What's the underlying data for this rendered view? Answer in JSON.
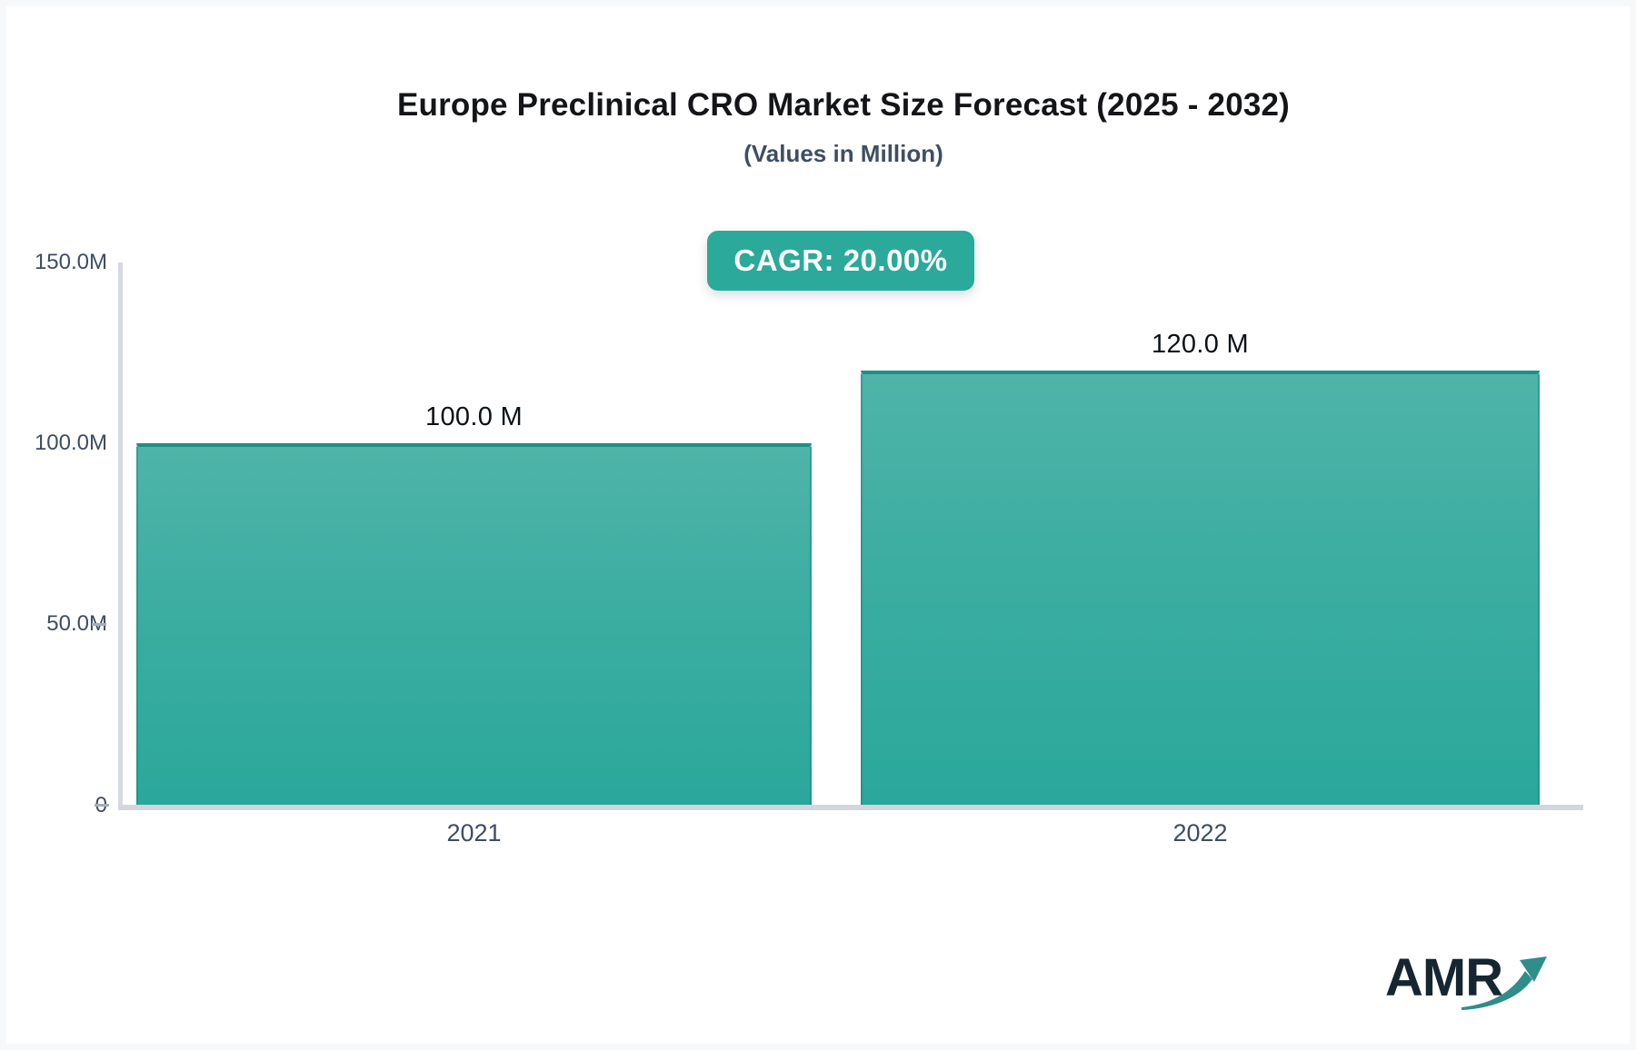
{
  "chart": {
    "title": "Europe Preclinical CRO Market Size Forecast (2025 - 2032)",
    "subtitle": "(Values in Million)",
    "cagr_label": "CAGR: 20.00%"
  },
  "chart_data": {
    "type": "bar",
    "title": "Europe Preclinical CRO Market Size Forecast (2025 - 2032)",
    "subtitle": "(Values in Million)",
    "unit": "Million",
    "cagr_pct": 20.0,
    "categories": [
      "2021",
      "2022"
    ],
    "values": [
      100.0,
      120.0
    ],
    "value_labels": [
      "100.0 M",
      "120.0 M"
    ],
    "ylim": [
      0,
      150
    ],
    "ytick_labels": [
      "150.0M",
      "100.0M",
      "50.0M",
      "0"
    ],
    "grid": false,
    "legend": "none",
    "bar_color_top": "#4fb4a9",
    "bar_color_bottom": "#2aa89b",
    "bar_border_color": "#1d9082",
    "axis_color": "#d5d8de",
    "label_color": "#3e4d62"
  },
  "badge": {
    "background": "#2ba99a",
    "text_color": "#ffffff"
  },
  "logo": {
    "text": "AMR",
    "text_color": "#162630",
    "arrow_color": "#2f8d8a"
  }
}
